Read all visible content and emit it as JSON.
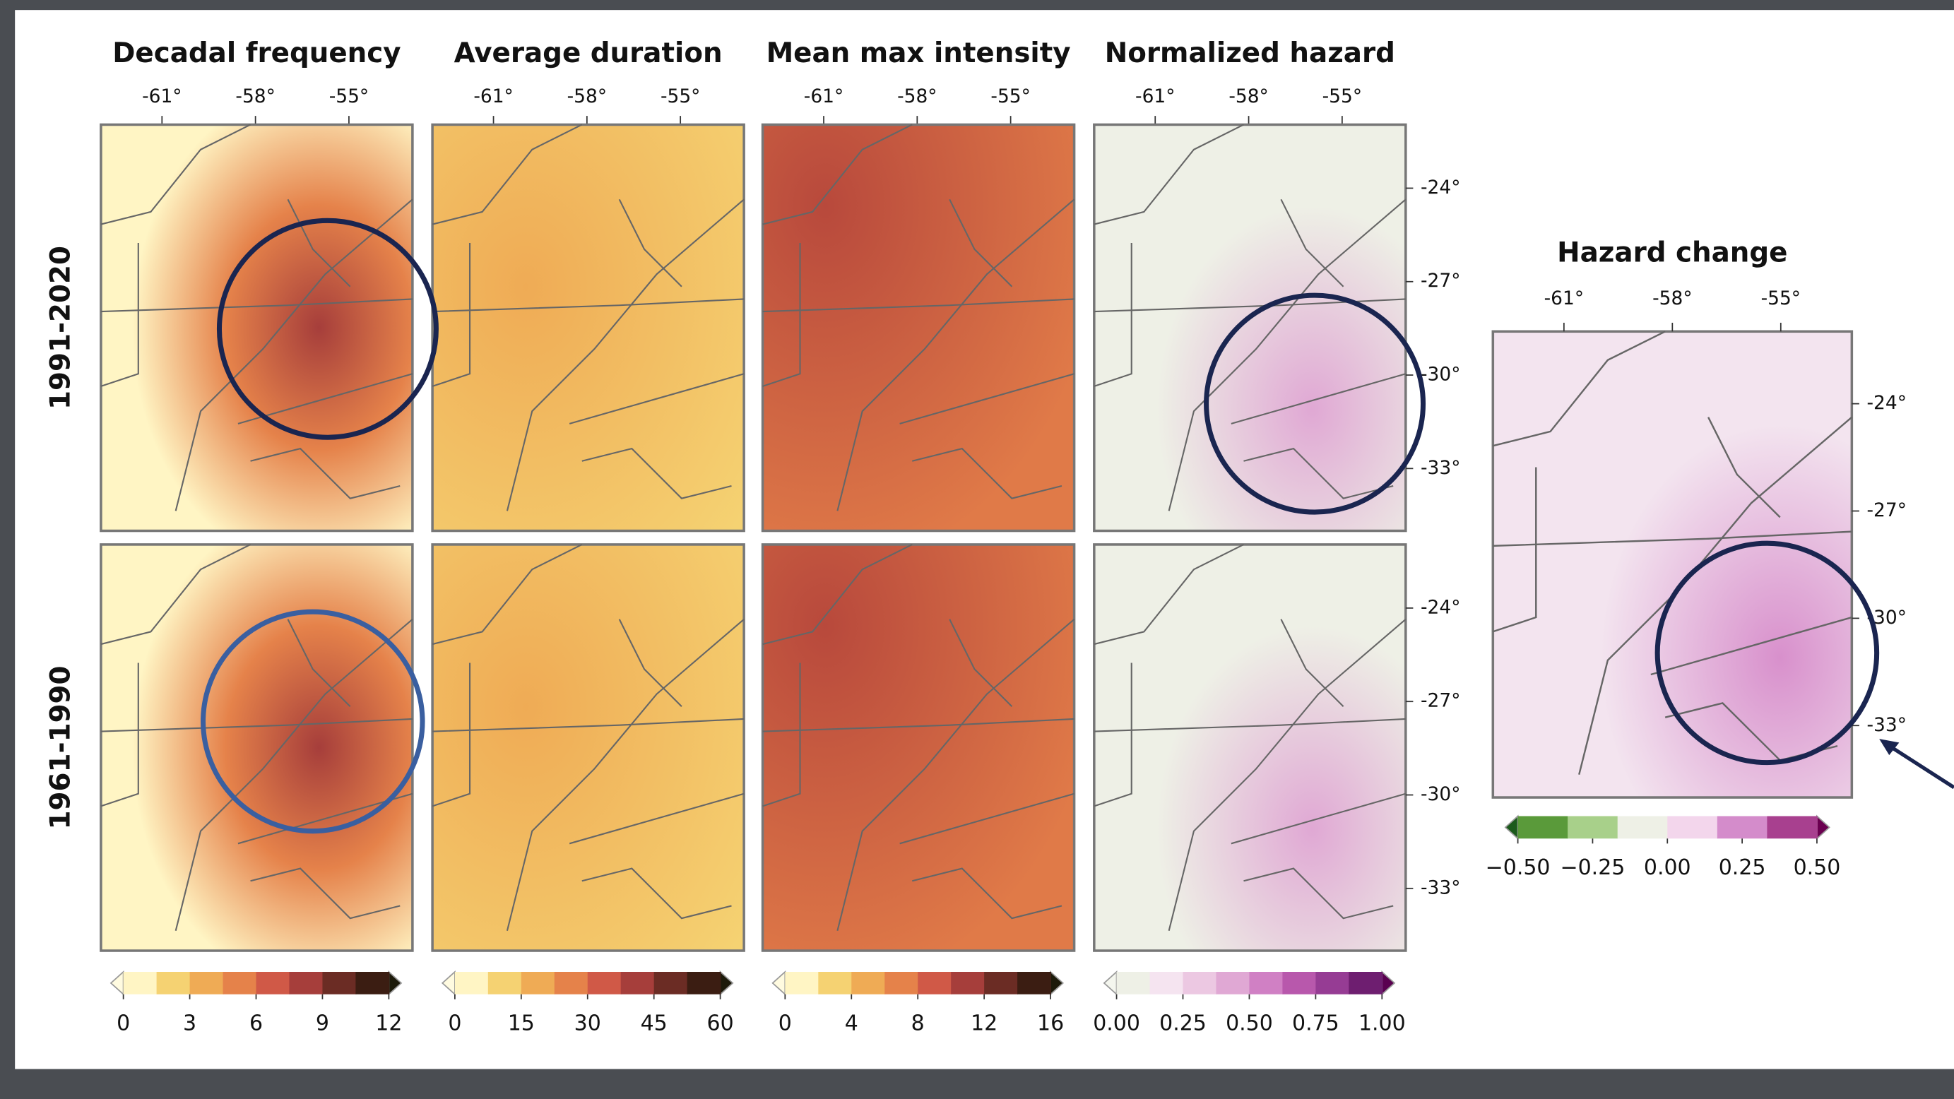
{
  "panels": [
    {
      "title": "Decadal frequency",
      "colorbar": {
        "colors": [
          "#fff5c4",
          "#f5d272",
          "#efab55",
          "#e5824a",
          "#d05947",
          "#a63e3b",
          "#6b2c24",
          "#3b1d12"
        ],
        "under": "#fffbe0",
        "over": "#1c1a0a",
        "ticks": [
          0,
          3,
          6,
          9,
          12
        ],
        "lim": [
          0,
          12
        ]
      }
    },
    {
      "title": "Average duration",
      "colorbar": {
        "colors": [
          "#fff5c4",
          "#f5d272",
          "#efab55",
          "#e5824a",
          "#d05947",
          "#a63e3b",
          "#6b2c24",
          "#3b1d12"
        ],
        "under": "#fffbe0",
        "over": "#1c1a0a",
        "ticks": [
          0,
          15,
          30,
          45,
          60
        ],
        "lim": [
          0,
          60
        ]
      }
    },
    {
      "title": "Mean max intensity",
      "colorbar": {
        "colors": [
          "#fff5c4",
          "#f5d272",
          "#efab55",
          "#e5824a",
          "#d05947",
          "#a63e3b",
          "#6b2c24",
          "#3b1d12"
        ],
        "under": "#fffbe0",
        "over": "#1c1a0a",
        "ticks": [
          0,
          4,
          8,
          12,
          16
        ],
        "lim": [
          0,
          16
        ]
      }
    },
    {
      "title": "Normalized hazard",
      "colorbar": {
        "colors": [
          "#eef0e6",
          "#f5e4f0",
          "#ecc8e2",
          "#e0a8d4",
          "#d080c4",
          "#b858ac",
          "#963c94",
          "#6e1e70"
        ],
        "under": "#f4f6ee",
        "over": "#5a0050",
        "ticks": [
          {
            "value": 0,
            "label": "0.00"
          },
          {
            "value": 0.25,
            "label": "0.25"
          },
          {
            "value": 0.5,
            "label": "0.50"
          },
          {
            "value": 0.75,
            "label": "0.75"
          },
          {
            "value": 1,
            "label": "1.00"
          }
        ],
        "lim": [
          0,
          1
        ]
      }
    }
  ],
  "rows": [
    "1991-2020",
    "1961-1990"
  ],
  "lon_ticks": [
    {
      "value": -61,
      "label": "-61°"
    },
    {
      "value": -58,
      "label": "-58°"
    },
    {
      "value": -55,
      "label": "-55°"
    }
  ],
  "lat_ticks": [
    {
      "value": -24,
      "label": "-24°"
    },
    {
      "value": -27,
      "label": "-27°"
    },
    {
      "value": -30,
      "label": "-30°"
    },
    {
      "value": -33,
      "label": "-33°"
    }
  ],
  "change": {
    "title": "Hazard change",
    "colorbar": {
      "colors": [
        "#5a9a3a",
        "#a8d08a",
        "#eef0e6",
        "#f3d6ec",
        "#d48ccb",
        "#a8408f"
      ],
      "under": "#1b5a1b",
      "over": "#6b0050",
      "ticks": [
        {
          "value": -0.5,
          "label": "−0.50"
        },
        {
          "value": -0.25,
          "label": "−0.25"
        },
        {
          "value": 0,
          "label": "0.00"
        },
        {
          "value": 0.25,
          "label": "0.25"
        },
        {
          "value": 0.5,
          "label": "0.50"
        }
      ],
      "lim": [
        -0.5,
        0.5
      ]
    }
  }
}
